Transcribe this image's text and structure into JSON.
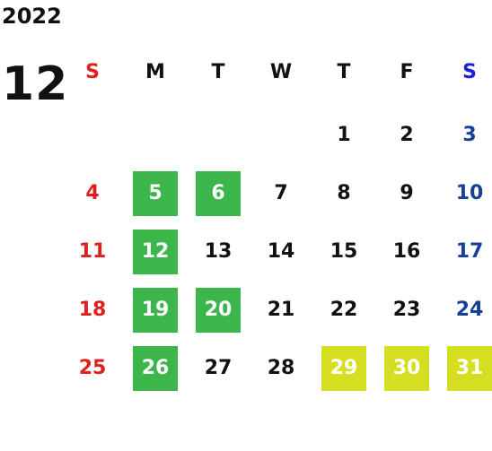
{
  "year": "2022",
  "month": "12",
  "weekdays": [
    "S",
    "M",
    "T",
    "W",
    "T",
    "F",
    "S"
  ],
  "weeks": [
    [
      "",
      "",
      "",
      "",
      "1",
      "2",
      "3"
    ],
    [
      "4",
      "5",
      "6",
      "7",
      "8",
      "9",
      "10"
    ],
    [
      "11",
      "12",
      "13",
      "14",
      "15",
      "16",
      "17"
    ],
    [
      "18",
      "19",
      "20",
      "21",
      "22",
      "23",
      "24"
    ],
    [
      "25",
      "26",
      "27",
      "28",
      "29",
      "30",
      "31"
    ]
  ],
  "highlights": {
    "green": [
      "5",
      "6",
      "12",
      "19",
      "20",
      "26"
    ],
    "lime": [
      "29",
      "30",
      "31"
    ]
  },
  "colors": {
    "sunday": "#e02020",
    "saturday": "#1a3f9a",
    "saturday_header": "#1a22d8",
    "green_highlight": "#3cb54a",
    "lime_highlight": "#d6de22",
    "text": "#111111"
  }
}
